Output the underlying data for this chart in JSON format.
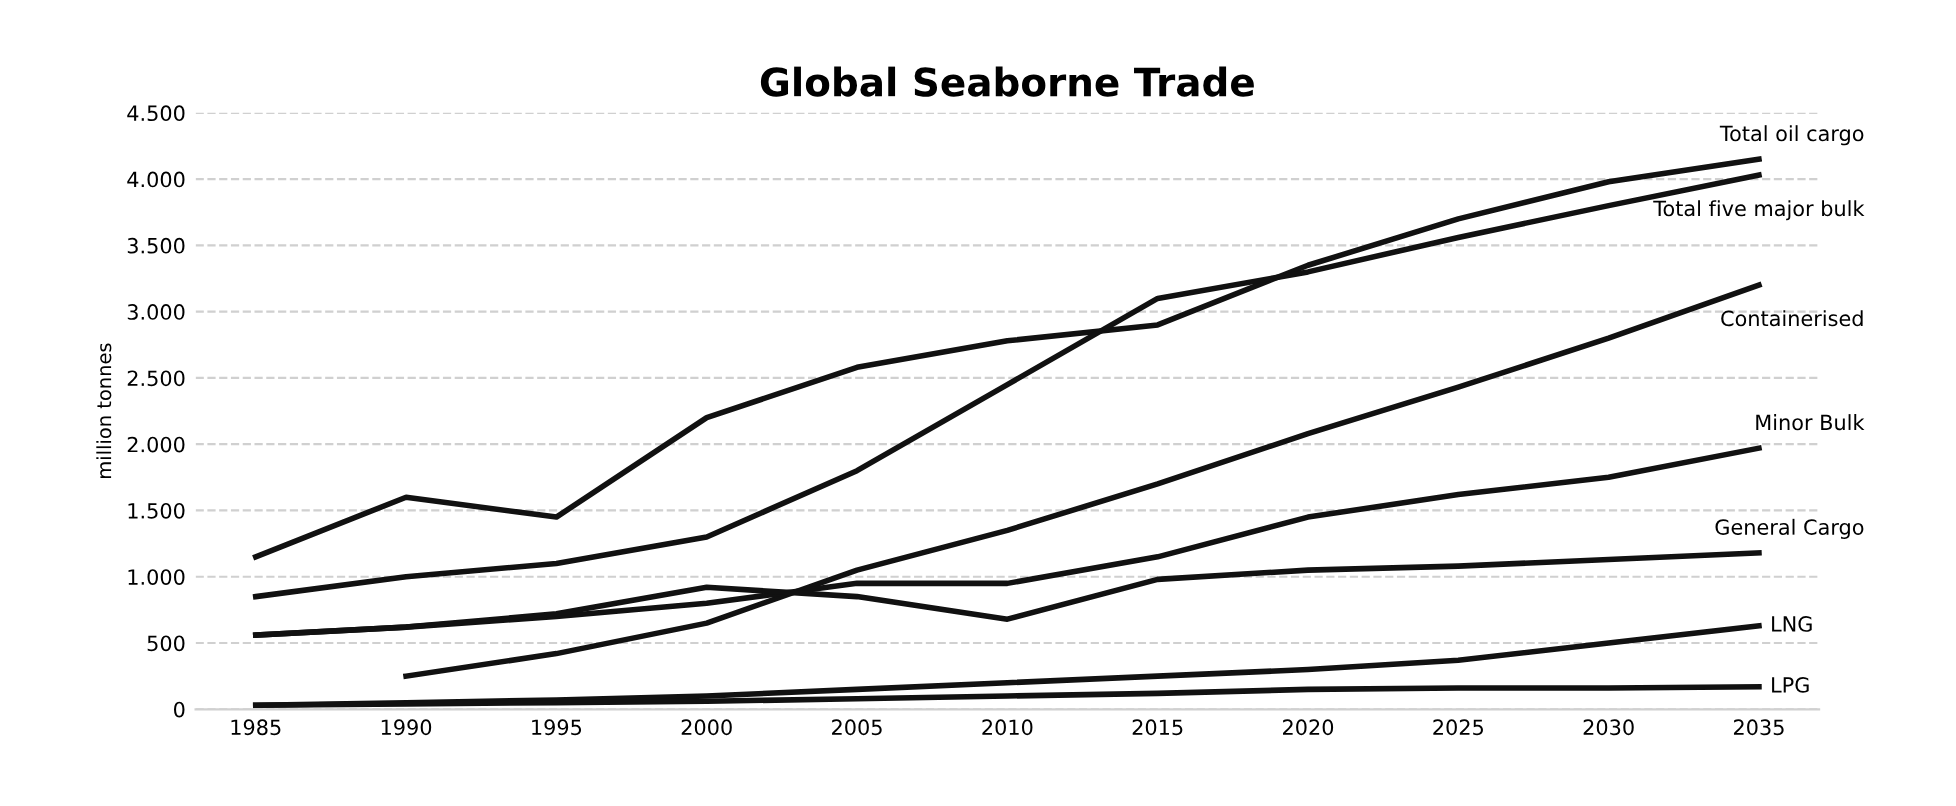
{
  "chart_data": {
    "type": "line",
    "title": "Global Seaborne Trade",
    "ylabel": "million tonnes",
    "categories": [
      "1985",
      "1990",
      "1995",
      "2000",
      "2005",
      "2010",
      "2015",
      "2020",
      "2025",
      "2030",
      "2035"
    ],
    "ylim": [
      0,
      4500
    ],
    "yticks": [
      0,
      {
        "value": 500,
        "label": "500"
      },
      {
        "value": 1000,
        "label": "1.000"
      },
      {
        "value": 1500,
        "label": "1.500"
      },
      {
        "value": 2000,
        "label": "2.000"
      },
      {
        "value": 2500,
        "label": "2.500"
      },
      {
        "value": 3000,
        "label": "3.000"
      },
      {
        "value": 3500,
        "label": "3.500"
      },
      {
        "value": 4000,
        "label": "4.000"
      },
      {
        "value": 4500,
        "label": "4.500"
      }
    ],
    "grid": "y",
    "legend": false,
    "marker": "none",
    "line_style": "solid",
    "series": [
      {
        "name": "Total oil cargo",
        "color": "#111111",
        "values": [
          1150,
          1600,
          1450,
          2200,
          2580,
          2780,
          2900,
          3350,
          3700,
          3980,
          4150
        ]
      },
      {
        "name": "Total five major bulk",
        "color": "#111111",
        "values": [
          850,
          1000,
          1100,
          1300,
          1800,
          2450,
          3100,
          3300,
          3560,
          3800,
          4030
        ]
      },
      {
        "name": "Containerised",
        "color": "#111111",
        "values": [
          null,
          250,
          420,
          650,
          1050,
          1350,
          1700,
          2080,
          2430,
          2800,
          3200
        ]
      },
      {
        "name": "Minor Bulk",
        "color": "#111111",
        "values": [
          560,
          620,
          700,
          800,
          950,
          950,
          1150,
          1450,
          1620,
          1750,
          1970
        ]
      },
      {
        "name": "General Cargo",
        "color": "#111111",
        "values": [
          560,
          620,
          720,
          920,
          850,
          680,
          980,
          1050,
          1080,
          1130,
          1180
        ]
      },
      {
        "name": "LNG",
        "color": "#111111",
        "values": [
          30,
          50,
          70,
          100,
          150,
          200,
          250,
          300,
          370,
          500,
          630
        ]
      },
      {
        "name": "LPG",
        "color": "#111111",
        "values": [
          30,
          40,
          50,
          60,
          80,
          100,
          120,
          150,
          160,
          160,
          170
        ]
      }
    ]
  }
}
